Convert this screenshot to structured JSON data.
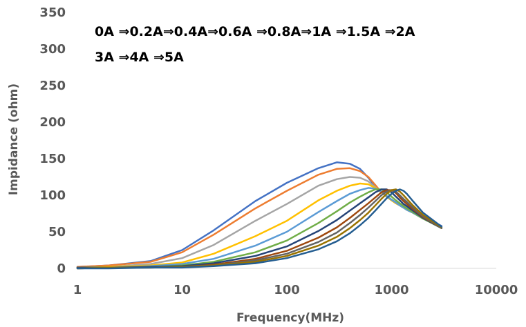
{
  "chart_data": {
    "type": "line",
    "xlabel": "Frequency(MHz)",
    "ylabel": "Impidance (ohm)",
    "xscale": "log",
    "xlim": [
      1,
      10000
    ],
    "ylim": [
      0,
      350
    ],
    "x_ticks": [
      "1",
      "10",
      "100",
      "1000",
      "10000"
    ],
    "y_ticks": [
      "0",
      "50",
      "100",
      "150",
      "200",
      "250",
      "300",
      "350"
    ],
    "grid": "none",
    "annotation_lines": [
      "0A ⇒0.2A⇒0.4A⇒0.6A ⇒0.8A⇒1A ⇒1.5A ⇒2A",
      "3A ⇒4A ⇒5A"
    ],
    "x": [
      1,
      2,
      5,
      10,
      20,
      50,
      100,
      200,
      300,
      400,
      500,
      600,
      700,
      800,
      900,
      1000,
      1100,
      1200,
      1300,
      1400,
      1600,
      2000,
      3000
    ],
    "series": [
      {
        "color": "#4472C4",
        "values": [
          2,
          4,
          10,
          25,
          52,
          92,
          117,
          137,
          145,
          143,
          136,
          124,
          112,
          104,
          98,
          94,
          90,
          87,
          84,
          82,
          77,
          70,
          58
        ]
      },
      {
        "color": "#ED7D31",
        "values": [
          2,
          4,
          9,
          22,
          46,
          82,
          106,
          128,
          136,
          137,
          133,
          125,
          114,
          104,
          98,
          93,
          89,
          86,
          83,
          81,
          76,
          69,
          57
        ]
      },
      {
        "color": "#A5A5A5",
        "values": [
          1,
          2,
          6,
          14,
          32,
          65,
          88,
          113,
          122,
          125,
          124,
          119,
          111,
          104,
          98,
          93,
          89,
          86,
          83,
          80,
          76,
          69,
          57
        ]
      },
      {
        "color": "#FFC000",
        "values": [
          1,
          2,
          4,
          8,
          20,
          44,
          65,
          93,
          106,
          113,
          116,
          115,
          110,
          104,
          98,
          93,
          89,
          86,
          83,
          80,
          76,
          68,
          56
        ]
      },
      {
        "color": "#5B9BD5",
        "values": [
          1,
          1,
          3,
          6,
          13,
          31,
          50,
          77,
          92,
          102,
          107,
          110,
          109,
          105,
          99,
          94,
          90,
          86,
          83,
          80,
          76,
          68,
          56
        ]
      },
      {
        "color": "#70AD47",
        "values": [
          1,
          1,
          2,
          4,
          9,
          22,
          38,
          62,
          78,
          90,
          98,
          104,
          108,
          108,
          104,
          98,
          93,
          89,
          85,
          82,
          77,
          68,
          55
        ]
      },
      {
        "color": "#264478",
        "values": [
          1,
          1,
          2,
          3,
          7,
          17,
          30,
          51,
          66,
          79,
          89,
          97,
          104,
          108,
          108,
          104,
          98,
          93,
          88,
          85,
          79,
          69,
          55
        ]
      },
      {
        "color": "#9E480E",
        "values": [
          0,
          1,
          1,
          2,
          5,
          13,
          24,
          42,
          56,
          69,
          80,
          89,
          97,
          104,
          107,
          107,
          103,
          97,
          92,
          88,
          81,
          70,
          55
        ]
      },
      {
        "color": "#636363",
        "values": [
          0,
          1,
          1,
          2,
          4,
          11,
          20,
          36,
          49,
          62,
          73,
          83,
          92,
          100,
          105,
          107,
          105,
          100,
          95,
          91,
          83,
          71,
          55
        ]
      },
      {
        "color": "#997300",
        "values": [
          0,
          1,
          1,
          2,
          4,
          9,
          17,
          31,
          43,
          55,
          66,
          76,
          86,
          95,
          102,
          107,
          108,
          105,
          100,
          95,
          86,
          73,
          56
        ]
      },
      {
        "color": "#255E91",
        "values": [
          0,
          0,
          1,
          1,
          3,
          7,
          14,
          26,
          37,
          48,
          59,
          69,
          79,
          88,
          96,
          102,
          106,
          108,
          106,
          102,
          92,
          76,
          57
        ]
      }
    ]
  }
}
